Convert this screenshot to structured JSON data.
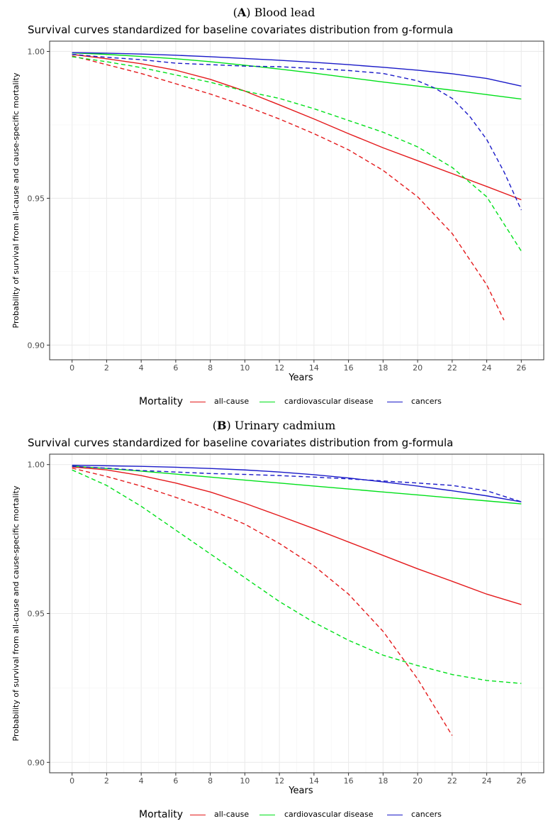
{
  "figure": {
    "panels": [
      {
        "label": "A",
        "subtitle": "Blood lead"
      },
      {
        "label": "B",
        "subtitle": "Urinary cadmium"
      }
    ],
    "legend": {
      "title": "Mortality",
      "items": [
        {
          "label": "all-cause",
          "color": "#e41a1c"
        },
        {
          "label": "cardiovascular disease",
          "color": "#00e01a"
        },
        {
          "label": "cancers",
          "color": "#1a1ac8"
        }
      ]
    }
  },
  "chart_data": [
    {
      "type": "line",
      "title": "Survival curves standardized for baseline covariates distribution from g-formula",
      "xlabel": "Years",
      "ylabel": "Probability of survival from all-cause and cause-specific mortality",
      "xlim": [
        -1.3,
        27.3
      ],
      "ylim": [
        0.895,
        1.0035
      ],
      "xticks": [
        0,
        2,
        4,
        6,
        8,
        10,
        12,
        14,
        16,
        18,
        20,
        22,
        24,
        26
      ],
      "yticks": [
        0.9,
        0.95,
        1.0
      ],
      "ytick_labels": [
        "0.90",
        "0.95",
        "1.00"
      ],
      "series": [
        {
          "name": "all-cause",
          "linetype": "solid",
          "color": "#e41a1c",
          "x": [
            0,
            2,
            4,
            6,
            8,
            10,
            12,
            14,
            16,
            18,
            20,
            22,
            24,
            26
          ],
          "y": [
            0.999,
            0.9975,
            0.9958,
            0.9936,
            0.9905,
            0.9865,
            0.9818,
            0.977,
            0.972,
            0.9672,
            0.9628,
            0.9584,
            0.954,
            0.9495
          ]
        },
        {
          "name": "all-cause",
          "linetype": "dashed",
          "color": "#e41a1c",
          "x": [
            0,
            2,
            4,
            6,
            8,
            10,
            12,
            14,
            16,
            18,
            20,
            22,
            24,
            25
          ],
          "y": [
            0.9985,
            0.9955,
            0.9925,
            0.989,
            0.9855,
            0.9815,
            0.977,
            0.972,
            0.9665,
            0.9595,
            0.9505,
            0.938,
            0.9205,
            0.9085
          ]
        },
        {
          "name": "cardiovascular disease",
          "linetype": "solid",
          "color": "#00e01a",
          "x": [
            0,
            2,
            4,
            6,
            8,
            10,
            12,
            14,
            16,
            18,
            20,
            22,
            24,
            26
          ],
          "y": [
            0.9995,
            0.999,
            0.9983,
            0.9975,
            0.9965,
            0.9953,
            0.994,
            0.9926,
            0.9911,
            0.9896,
            0.9882,
            0.9868,
            0.9853,
            0.9838
          ]
        },
        {
          "name": "cardiovascular disease",
          "linetype": "dashed",
          "color": "#00e01a",
          "x": [
            0,
            2,
            4,
            6,
            8,
            10,
            12,
            14,
            16,
            18,
            20,
            22,
            24,
            26
          ],
          "y": [
            0.9982,
            0.9965,
            0.9945,
            0.992,
            0.9895,
            0.9865,
            0.984,
            0.9805,
            0.9765,
            0.9725,
            0.9675,
            0.9605,
            0.9505,
            0.932
          ]
        },
        {
          "name": "cancers",
          "linetype": "solid",
          "color": "#1a1ac8",
          "x": [
            0,
            2,
            4,
            6,
            8,
            10,
            12,
            14,
            16,
            18,
            20,
            22,
            24,
            26
          ],
          "y": [
            0.9996,
            0.9994,
            0.9991,
            0.9987,
            0.9982,
            0.9976,
            0.997,
            0.9963,
            0.9955,
            0.9946,
            0.9936,
            0.9924,
            0.9908,
            0.9882
          ]
        },
        {
          "name": "cancers",
          "linetype": "dashed",
          "color": "#1a1ac8",
          "x": [
            0,
            2,
            4,
            6,
            8,
            10,
            12,
            14,
            16,
            18,
            20,
            21,
            22,
            23,
            24,
            25,
            26
          ],
          "y": [
            0.999,
            0.998,
            0.9972,
            0.996,
            0.9955,
            0.995,
            0.9948,
            0.9942,
            0.9935,
            0.9925,
            0.99,
            0.9875,
            0.984,
            0.978,
            0.97,
            0.959,
            0.946
          ]
        }
      ]
    },
    {
      "type": "line",
      "title": "Survival curves standardized for baseline covariates distribution from g-formula",
      "xlabel": "Years",
      "ylabel": "Probability of survival from all-cause and cause-specific mortality",
      "xlim": [
        -1.3,
        27.3
      ],
      "ylim": [
        0.8965,
        1.0035
      ],
      "xticks": [
        0,
        2,
        4,
        6,
        8,
        10,
        12,
        14,
        16,
        18,
        20,
        22,
        24,
        26
      ],
      "yticks": [
        0.9,
        0.95,
        1.0
      ],
      "ytick_labels": [
        "0.90",
        "0.95",
        "1.00"
      ],
      "series": [
        {
          "name": "all-cause",
          "linetype": "solid",
          "color": "#e41a1c",
          "x": [
            0,
            2,
            4,
            6,
            8,
            10,
            12,
            14,
            16,
            18,
            20,
            22,
            24,
            26
          ],
          "y": [
            0.9992,
            0.9982,
            0.9963,
            0.9938,
            0.9908,
            0.987,
            0.9828,
            0.9785,
            0.974,
            0.9695,
            0.965,
            0.9608,
            0.9565,
            0.953
          ]
        },
        {
          "name": "all-cause",
          "linetype": "dashed",
          "color": "#e41a1c",
          "x": [
            0,
            2,
            4,
            6,
            8,
            10,
            12,
            14,
            16,
            18,
            20,
            22
          ],
          "y": [
            0.9988,
            0.996,
            0.9928,
            0.989,
            0.9848,
            0.98,
            0.9735,
            0.966,
            0.9565,
            0.944,
            0.928,
            0.909
          ]
        },
        {
          "name": "cardiovascular disease",
          "linetype": "solid",
          "color": "#00e01a",
          "x": [
            0,
            2,
            4,
            6,
            8,
            10,
            12,
            14,
            16,
            18,
            20,
            22,
            24,
            26
          ],
          "y": [
            0.9995,
            0.9987,
            0.9978,
            0.9968,
            0.9958,
            0.9948,
            0.9938,
            0.9928,
            0.9918,
            0.9908,
            0.9898,
            0.9888,
            0.9878,
            0.9868
          ]
        },
        {
          "name": "cardiovascular disease",
          "linetype": "dashed",
          "color": "#00e01a",
          "x": [
            0,
            2,
            4,
            6,
            8,
            10,
            12,
            14,
            16,
            18,
            20,
            22,
            24,
            26
          ],
          "y": [
            0.9982,
            0.993,
            0.986,
            0.978,
            0.97,
            0.962,
            0.954,
            0.947,
            0.941,
            0.936,
            0.9325,
            0.9295,
            0.9275,
            0.9265
          ]
        },
        {
          "name": "cancers",
          "linetype": "solid",
          "color": "#1a1ac8",
          "x": [
            0,
            2,
            4,
            6,
            8,
            10,
            12,
            14,
            16,
            18,
            20,
            22,
            24,
            26
          ],
          "y": [
            0.9998,
            0.9996,
            0.9994,
            0.9991,
            0.9987,
            0.9982,
            0.9975,
            0.9966,
            0.9955,
            0.9942,
            0.9928,
            0.9912,
            0.9895,
            0.9875
          ]
        },
        {
          "name": "cancers",
          "linetype": "dashed",
          "color": "#1a1ac8",
          "x": [
            0,
            2,
            4,
            6,
            8,
            10,
            12,
            14,
            16,
            18,
            20,
            22,
            24,
            26
          ],
          "y": [
            0.9994,
            0.9988,
            0.998,
            0.9975,
            0.997,
            0.9967,
            0.9963,
            0.9958,
            0.9952,
            0.9945,
            0.9938,
            0.993,
            0.9912,
            0.9875
          ]
        }
      ]
    }
  ]
}
